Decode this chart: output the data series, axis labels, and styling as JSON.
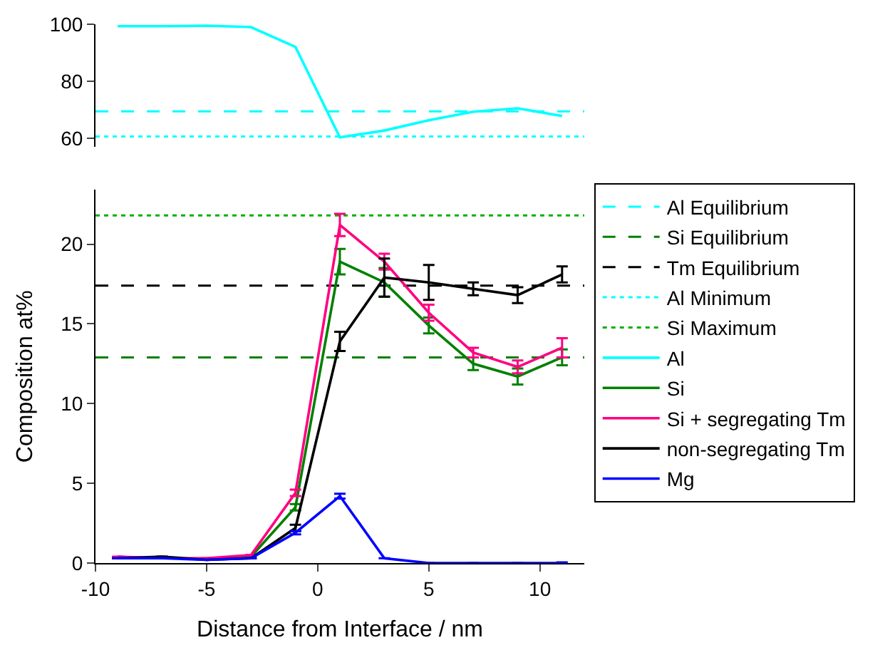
{
  "chart_data": [
    {
      "type": "line",
      "xlim": [
        -10,
        12
      ],
      "ylim": [
        57,
        100
      ],
      "yticks": [
        60,
        80,
        100
      ],
      "tick_labels": "y",
      "legend": "right",
      "line_style": "solid",
      "marker": "none",
      "ref_lines": [
        {
          "axis": "y",
          "value": 69.4,
          "label": "Al Equilibrium",
          "color": "#00ffff",
          "line_style": "dashed"
        },
        {
          "axis": "y",
          "value": 60.6,
          "label": "Al Minimum",
          "color": "#00ffff",
          "line_style": "dotted"
        }
      ],
      "series": [
        {
          "name": "Al",
          "color": "#00ffff",
          "x": [
            -9,
            -7,
            -5,
            -3,
            -1,
            1,
            3,
            5,
            7,
            9,
            11
          ],
          "values": [
            99.3,
            99.3,
            99.5,
            99,
            92,
            60.3,
            62.7,
            66.3,
            69.3,
            70.5,
            67.8
          ]
        }
      ]
    },
    {
      "type": "line",
      "xlabel": "Distance from Interface / nm",
      "ylabel": "Composition at%",
      "xlim": [
        -10,
        12
      ],
      "xticks": [
        -10,
        -5,
        0,
        5,
        10
      ],
      "ylim": [
        0,
        23.4
      ],
      "yticks": [
        0,
        5,
        10,
        15,
        20
      ],
      "legend": "right",
      "line_style": "solid",
      "marker": "none",
      "ref_lines": [
        {
          "axis": "y",
          "value": 12.9,
          "label": "Si Equilibrium",
          "color": "#008000",
          "line_style": "dashed"
        },
        {
          "axis": "y",
          "value": 17.4,
          "label": "Tm Equilibrium",
          "color": "#000000",
          "line_style": "dashed"
        },
        {
          "axis": "y",
          "value": 21.8,
          "label": "Si Maximum",
          "color": "#00b000",
          "line_style": "dotted"
        }
      ],
      "series": [
        {
          "name": "Si",
          "color": "#008000",
          "x": [
            -5,
            -3,
            -1,
            1,
            3,
            5,
            7,
            9,
            11
          ],
          "values": [
            0.2,
            0.4,
            3.5,
            18.9,
            17.6,
            14.9,
            12.5,
            11.7,
            12.9
          ],
          "errors": [
            null,
            null,
            0.2,
            0.8,
            0.9,
            0.5,
            0.4,
            0.5,
            0.5
          ]
        },
        {
          "name": "Si + segregating Tm",
          "color": "#ff0080",
          "x": [
            -9,
            -7,
            -5,
            -3,
            -1,
            1,
            3,
            5,
            7,
            9,
            11
          ],
          "values": [
            0.4,
            0.3,
            0.3,
            0.5,
            4.4,
            21.2,
            18.9,
            15.7,
            13.2,
            12.3,
            13.5
          ],
          "errors": [
            null,
            null,
            null,
            null,
            0.2,
            0.7,
            0.5,
            0.5,
            0.3,
            0.4,
            0.6
          ]
        },
        {
          "name": "non-segregating Tm",
          "color": "#000000",
          "x": [
            -9,
            -7,
            -5,
            -3,
            -1,
            1,
            3,
            5,
            7,
            9,
            11
          ],
          "values": [
            0.3,
            0.4,
            0.2,
            0.3,
            2.2,
            13.9,
            17.9,
            17.6,
            17.2,
            16.8,
            18.1
          ],
          "errors": [
            null,
            null,
            null,
            null,
            0.2,
            0.6,
            1.2,
            1.1,
            0.4,
            0.5,
            0.5
          ]
        },
        {
          "name": "Mg",
          "color": "#0000ff",
          "x": [
            -9,
            -7,
            -5,
            -3,
            -1,
            1,
            3,
            5,
            7,
            9,
            11
          ],
          "values": [
            0.3,
            0.3,
            0.2,
            0.3,
            1.9,
            4.2,
            0.3,
            0,
            0,
            0,
            0
          ],
          "errors": [
            null,
            null,
            null,
            null,
            0.1,
            0.15,
            null,
            null,
            null,
            null,
            0.05
          ]
        }
      ]
    }
  ]
}
